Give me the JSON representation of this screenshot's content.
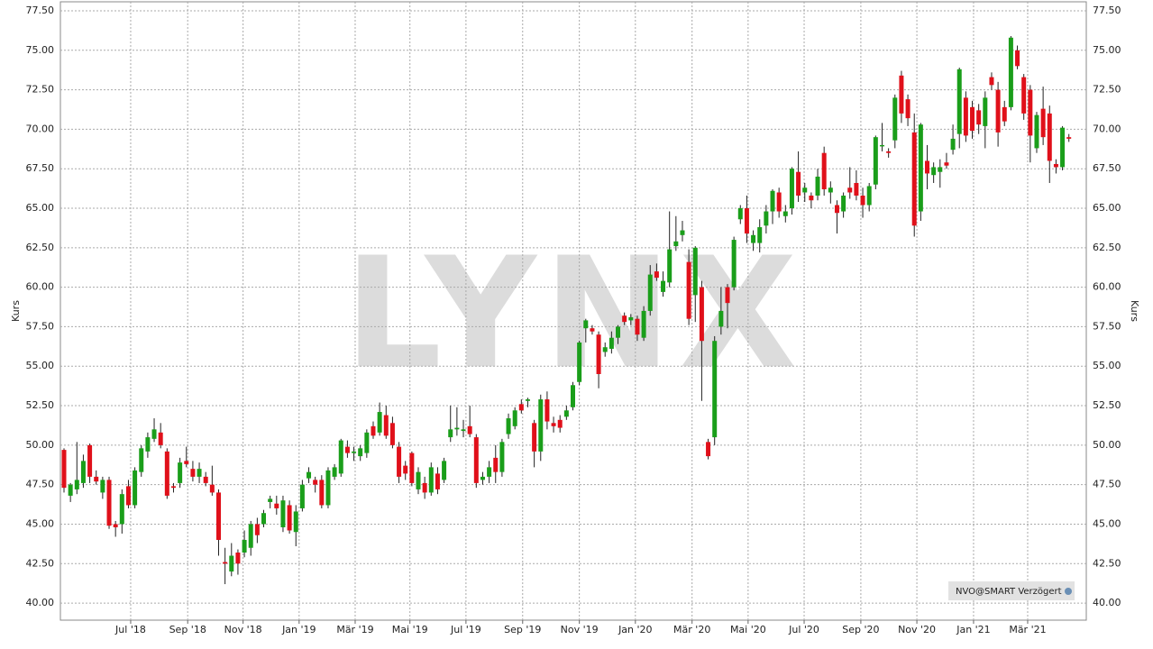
{
  "chart_data": {
    "type": "candlestick",
    "y_label": "Kurs",
    "watermark": "LYNX",
    "legend_text": "NVO@SMART Verzögert",
    "up_color": "#1a9e1a",
    "down_color": "#e0101a",
    "grid": true,
    "ylim": [
      38.92,
      78.07
    ],
    "yticks": [
      {
        "value": 40,
        "label": "40.00"
      },
      {
        "value": 42.5,
        "label": "42.50"
      },
      {
        "value": 45,
        "label": "45.00"
      },
      {
        "value": 47.5,
        "label": "47.50"
      },
      {
        "value": 50,
        "label": "50.00"
      },
      {
        "value": 52.5,
        "label": "52.50"
      },
      {
        "value": 55,
        "label": "55.00"
      },
      {
        "value": 57.5,
        "label": "57.50"
      },
      {
        "value": 60,
        "label": "60.00"
      },
      {
        "value": 62.5,
        "label": "62.50"
      },
      {
        "value": 65,
        "label": "65.00"
      },
      {
        "value": 67.5,
        "label": "67.50"
      },
      {
        "value": 70,
        "label": "70.00"
      },
      {
        "value": 72.5,
        "label": "72.50"
      },
      {
        "value": 75,
        "label": "75.00"
      },
      {
        "value": 77.5,
        "label": "77.50"
      }
    ],
    "xlim": [
      -0.56,
      158.7
    ],
    "xticks": [
      {
        "value": 10.35,
        "label": "Jul '18"
      },
      {
        "value": 19.2,
        "label": "Sep '18"
      },
      {
        "value": 27.8,
        "label": "Nov '18"
      },
      {
        "value": 36.5,
        "label": "Jan '19"
      },
      {
        "value": 45.2,
        "label": "Mär '19"
      },
      {
        "value": 53.7,
        "label": "Mai '19"
      },
      {
        "value": 62.4,
        "label": "Jul '19"
      },
      {
        "value": 71.2,
        "label": "Sep '19"
      },
      {
        "value": 80.0,
        "label": "Nov '19"
      },
      {
        "value": 88.7,
        "label": "Jan '20"
      },
      {
        "value": 97.5,
        "label": "Mär '20"
      },
      {
        "value": 106.2,
        "label": "Mai '20"
      },
      {
        "value": 114.9,
        "label": "Jul '20"
      },
      {
        "value": 123.7,
        "label": "Sep '20"
      },
      {
        "value": 132.4,
        "label": "Nov '20"
      },
      {
        "value": 141.2,
        "label": "Jan '21"
      },
      {
        "value": 149.6,
        "label": "Mär '21"
      }
    ],
    "open": [
      49.7,
      46.8,
      47.2,
      47.6,
      50.0,
      48.0,
      47.0,
      47.8,
      45.0,
      45.0,
      47.4,
      46.2,
      48.3,
      49.6,
      50.4,
      50.8,
      49.6,
      47.4,
      47.6,
      49.0,
      48.5,
      48.0,
      48.0,
      47.5,
      47.0,
      42.6,
      42.0,
      43.2,
      43.2,
      43.5,
      45.0,
      45.0,
      46.4,
      46.3,
      44.8,
      46.2,
      44.5,
      46.0,
      47.9,
      47.8,
      47.8,
      46.2,
      48.0,
      48.2,
      49.9,
      49.5,
      49.3,
      49.5,
      51.2,
      50.8,
      51.9,
      51.4,
      49.9,
      48.7,
      49.5,
      47.2,
      47.6,
      47.0,
      48.2,
      47.8,
      50.5,
      51.0,
      50.9,
      51.2,
      50.5,
      47.8,
      48.0,
      49.2,
      48.3,
      50.7,
      51.2,
      52.6,
      52.8,
      51.4,
      49.6,
      52.9,
      51.4,
      51.6,
      51.8,
      52.4,
      54.0,
      57.4,
      57.4,
      57.0,
      55.9,
      56.1,
      56.8,
      58.2,
      57.9,
      58.0,
      56.8,
      58.5,
      61.0,
      59.7,
      60.3,
      62.6,
      63.3,
      61.6,
      59.5,
      60.0,
      50.2,
      50.5,
      57.5,
      60.0,
      60.0,
      64.3,
      65.0,
      62.8,
      62.8,
      63.9,
      64.8,
      66.0,
      64.5,
      65.0,
      67.3,
      66.0,
      65.8,
      65.8,
      68.5,
      66.0,
      65.2,
      64.8,
      66.3,
      66.6,
      65.8,
      65.2,
      66.5,
      69.0,
      68.6,
      69.3,
      73.4,
      71.9,
      69.8,
      64.8,
      68.0,
      67.1,
      67.3,
      67.9,
      68.7,
      69.7,
      72.0,
      71.4,
      71.2,
      70.2,
      73.3,
      72.5,
      71.4,
      71.4,
      75.0,
      73.3,
      72.5,
      68.8,
      71.3,
      71.0,
      67.8,
      67.6,
      69.5
    ],
    "high": [
      49.8,
      47.6,
      50.2,
      49.4,
      50.1,
      48.4,
      48.0,
      48.0,
      45.2,
      47.2,
      47.8,
      48.6,
      50.0,
      50.8,
      51.7,
      51.4,
      49.8,
      47.6,
      49.2,
      49.9,
      49.0,
      48.9,
      48.3,
      48.7,
      47.2,
      43.5,
      43.8,
      43.4,
      44.6,
      45.2,
      45.4,
      45.9,
      46.8,
      46.8,
      46.8,
      46.5,
      46.2,
      47.8,
      48.6,
      48.0,
      48.1,
      48.6,
      48.8,
      50.4,
      50.3,
      49.9,
      50.0,
      51.0,
      51.5,
      52.7,
      52.5,
      51.8,
      50.2,
      49.0,
      49.6,
      48.6,
      48.0,
      48.9,
      48.6,
      49.2,
      52.5,
      52.4,
      51.6,
      52.5,
      50.7,
      48.3,
      49.0,
      50.0,
      50.4,
      52.0,
      52.4,
      52.9,
      53.0,
      51.6,
      53.2,
      53.4,
      51.8,
      51.9,
      52.5,
      54.0,
      56.6,
      58.0,
      57.6,
      57.2,
      56.5,
      57.2,
      57.6,
      58.4,
      58.3,
      58.2,
      58.8,
      61.4,
      61.5,
      61.0,
      64.8,
      64.5,
      64.2,
      62.4,
      62.6,
      60.4,
      50.4,
      56.9,
      60.0,
      60.2,
      63.2,
      65.2,
      65.8,
      63.6,
      64.3,
      65.2,
      66.2,
      66.3,
      65.2,
      67.6,
      68.6,
      66.6,
      66.0,
      67.5,
      68.9,
      66.7,
      65.5,
      66.0,
      67.6,
      67.4,
      66.3,
      66.6,
      69.6,
      70.4,
      68.8,
      72.2,
      73.7,
      72.2,
      71.0,
      70.4,
      69.0,
      67.9,
      68.1,
      68.5,
      70.3,
      73.9,
      72.4,
      71.8,
      71.6,
      72.4,
      73.6,
      73.0,
      71.8,
      75.9,
      75.3,
      73.5,
      72.8,
      71.1,
      72.7,
      71.5,
      68.1,
      70.2,
      69.7
    ],
    "low": [
      47.0,
      46.4,
      46.9,
      47.3,
      47.6,
      47.5,
      46.6,
      44.7,
      44.2,
      44.4,
      46.0,
      46.0,
      48.0,
      49.2,
      50.2,
      49.8,
      46.6,
      47.0,
      47.3,
      48.6,
      47.7,
      47.6,
      47.4,
      46.8,
      43.0,
      41.2,
      41.7,
      41.8,
      42.9,
      43.0,
      43.8,
      44.8,
      46.0,
      45.6,
      44.5,
      44.4,
      43.6,
      45.8,
      47.6,
      47.0,
      46.0,
      46.0,
      47.8,
      48.0,
      49.2,
      49.0,
      49.0,
      49.2,
      50.4,
      50.6,
      50.4,
      49.8,
      47.6,
      47.8,
      47.4,
      46.9,
      46.6,
      46.8,
      46.9,
      47.6,
      50.2,
      50.6,
      50.5,
      50.5,
      47.3,
      47.5,
      47.6,
      47.6,
      48.0,
      50.4,
      51.0,
      52.0,
      52.4,
      48.6,
      49.0,
      51.0,
      50.8,
      50.8,
      51.6,
      52.2,
      53.8,
      56.5,
      57.0,
      53.6,
      55.6,
      55.8,
      56.4,
      57.6,
      57.6,
      56.6,
      56.6,
      58.2,
      60.4,
      59.4,
      60.0,
      62.3,
      62.9,
      57.6,
      57.8,
      52.8,
      49.1,
      50.0,
      57.0,
      57.4,
      59.8,
      64.0,
      62.8,
      62.3,
      62.2,
      63.4,
      64.0,
      64.4,
      64.1,
      64.6,
      65.4,
      65.4,
      65.0,
      65.5,
      65.8,
      65.3,
      63.4,
      64.4,
      65.6,
      65.5,
      64.4,
      64.8,
      66.2,
      68.6,
      68.2,
      68.8,
      70.4,
      70.2,
      63.2,
      64.2,
      66.2,
      66.6,
      66.3,
      67.5,
      68.4,
      68.8,
      69.2,
      69.4,
      69.7,
      68.8,
      72.5,
      68.9,
      70.2,
      71.2,
      73.8,
      70.6,
      67.9,
      68.5,
      69.0,
      66.6,
      67.2,
      67.4,
      69.2
    ],
    "close": [
      47.3,
      47.5,
      47.8,
      49.0,
      48.0,
      47.7,
      47.8,
      44.9,
      44.8,
      46.9,
      46.2,
      48.4,
      49.8,
      50.5,
      51.0,
      50.0,
      46.8,
      47.3,
      48.9,
      48.8,
      48.0,
      48.5,
      47.6,
      47.0,
      44.0,
      42.5,
      43.0,
      42.5,
      44.0,
      45.0,
      44.3,
      45.7,
      46.6,
      46.0,
      46.5,
      44.6,
      45.8,
      47.5,
      48.3,
      47.5,
      46.2,
      48.4,
      48.6,
      50.3,
      49.5,
      49.6,
      49.8,
      50.8,
      50.6,
      52.1,
      50.6,
      50.0,
      48.0,
      48.2,
      47.6,
      48.3,
      47.0,
      48.6,
      47.2,
      49.0,
      51.0,
      51.1,
      51.0,
      50.7,
      47.6,
      48.0,
      48.6,
      48.3,
      50.2,
      51.7,
      52.2,
      52.2,
      52.9,
      49.6,
      52.9,
      51.5,
      51.2,
      51.1,
      52.2,
      53.8,
      56.5,
      57.9,
      57.2,
      54.5,
      56.2,
      56.8,
      57.5,
      57.8,
      58.1,
      57.0,
      58.5,
      60.8,
      60.6,
      60.4,
      62.4,
      62.9,
      63.6,
      58.0,
      62.5,
      56.6,
      49.3,
      56.6,
      58.5,
      59.0,
      63.0,
      65.0,
      63.4,
      63.3,
      63.8,
      64.8,
      66.1,
      64.8,
      64.8,
      67.5,
      65.8,
      66.3,
      65.5,
      67.0,
      66.2,
      66.3,
      64.7,
      65.8,
      66.0,
      65.8,
      65.2,
      66.4,
      69.5,
      69.0,
      68.5,
      72.0,
      71.0,
      70.7,
      63.9,
      70.3,
      67.2,
      67.6,
      67.6,
      67.7,
      69.4,
      73.8,
      69.6,
      69.9,
      70.3,
      72.0,
      72.8,
      69.8,
      70.5,
      75.8,
      74.0,
      71.0,
      69.6,
      70.9,
      69.5,
      68.0,
      67.6,
      70.1,
      69.4
    ]
  }
}
